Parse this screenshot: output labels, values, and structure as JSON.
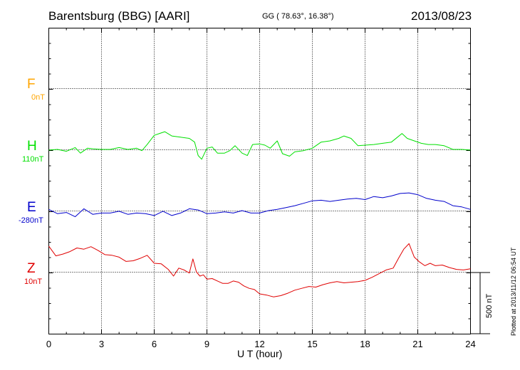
{
  "header": {
    "station": "Barentsburg (BBG)  [AARI]",
    "coords": "GG ( 78.63°,  16.38°)",
    "date": "2013/08/23"
  },
  "footer": {
    "plotted": "Plotted at 2013/11/12 06:54  UT"
  },
  "scale": {
    "label": "500 nT",
    "value_nT": 500
  },
  "components": [
    {
      "letter": "F",
      "base": "0nT",
      "color": "#ffa500"
    },
    {
      "letter": "H",
      "base": "110nT",
      "color": "#00e000"
    },
    {
      "letter": "E",
      "base": "-280nT",
      "color": "#0000cc"
    },
    {
      "letter": "Z",
      "base": "10nT",
      "color": "#e00000"
    }
  ],
  "chart_data": {
    "type": "line",
    "title": "Barentsburg (BBG)  [AARI]",
    "xlabel": "U T (hour)",
    "ylabel": "",
    "xlim": [
      0,
      24
    ],
    "xticks": [
      "0",
      "3",
      "6",
      "9",
      "12",
      "15",
      "18",
      "21",
      "24"
    ],
    "y_unit": "nT",
    "grid": true,
    "series": [
      {
        "name": "F",
        "color": "#ffa500",
        "x": [],
        "y": []
      },
      {
        "name": "H",
        "color": "#00e000",
        "x": [
          0,
          0.5,
          1,
          1.5,
          1.8,
          2.2,
          2.5,
          3,
          3.5,
          4,
          4.5,
          5,
          5.3,
          5.6,
          6,
          6.3,
          6.6,
          7,
          7.5,
          8,
          8.3,
          8.5,
          8.7,
          9,
          9.3,
          9.6,
          10,
          10.3,
          10.6,
          11,
          11.3,
          11.6,
          12,
          12.3,
          12.6,
          13,
          13.3,
          13.7,
          14,
          14.5,
          15,
          15.5,
          16,
          16.5,
          16.8,
          17.2,
          17.6,
          18,
          18.5,
          19,
          19.5,
          19.8,
          20.1,
          20.4,
          20.8,
          21.2,
          21.6,
          22,
          22.5,
          23,
          23.5,
          24
        ],
        "y": [
          105,
          110,
          95,
          125,
          80,
          120,
          115,
          110,
          110,
          125,
          110,
          120,
          100,
          150,
          225,
          240,
          255,
          220,
          210,
          200,
          170,
          60,
          30,
          120,
          130,
          80,
          80,
          100,
          140,
          80,
          60,
          150,
          155,
          145,
          120,
          180,
          75,
          55,
          90,
          100,
          120,
          170,
          180,
          200,
          220,
          200,
          140,
          145,
          150,
          160,
          170,
          205,
          240,
          200,
          180,
          160,
          150,
          150,
          140,
          110,
          110,
          105
        ]
      },
      {
        "name": "E",
        "color": "#0000cc",
        "x": [
          0,
          0.5,
          1,
          1.5,
          2,
          2.5,
          3,
          3.5,
          4,
          4.5,
          5,
          5.5,
          6,
          6.5,
          7,
          7.5,
          8,
          8.5,
          9,
          9.5,
          10,
          10.5,
          11,
          11.5,
          12,
          12.5,
          13,
          13.5,
          14,
          14.5,
          15,
          15.5,
          16,
          16.5,
          17,
          17.5,
          18,
          18.5,
          19,
          19.5,
          20,
          20.5,
          21,
          21.5,
          22,
          22.5,
          23,
          23.5,
          24
        ],
        "y": [
          -270,
          -305,
          -295,
          -330,
          -265,
          -310,
          -300,
          -300,
          -285,
          -310,
          -300,
          -305,
          -320,
          -285,
          -320,
          -300,
          -265,
          -275,
          -305,
          -300,
          -290,
          -300,
          -280,
          -300,
          -300,
          -280,
          -270,
          -255,
          -240,
          -220,
          -200,
          -195,
          -205,
          -195,
          -185,
          -180,
          -190,
          -165,
          -175,
          -160,
          -140,
          -135,
          -150,
          -180,
          -195,
          -205,
          -240,
          -250,
          -270
        ]
      },
      {
        "name": "Z",
        "color": "#e00000",
        "x": [
          0,
          0.4,
          0.8,
          1.2,
          1.6,
          2,
          2.4,
          2.8,
          3.2,
          3.6,
          4,
          4.4,
          4.8,
          5.2,
          5.6,
          6,
          6.4,
          6.8,
          7.1,
          7.4,
          7.7,
          8,
          8.2,
          8.4,
          8.6,
          8.8,
          9,
          9.3,
          9.6,
          9.9,
          10.2,
          10.5,
          10.8,
          11.1,
          11.4,
          11.7,
          12,
          12.4,
          12.8,
          13.2,
          13.6,
          14,
          14.4,
          14.8,
          15.2,
          15.6,
          16,
          16.4,
          16.8,
          17.2,
          17.6,
          18,
          18.4,
          18.8,
          19.2,
          19.6,
          19.9,
          20.2,
          20.5,
          20.8,
          21.1,
          21.4,
          21.7,
          22,
          22.4,
          22.8,
          23.2,
          23.6,
          24
        ],
        "y": [
          220,
          140,
          155,
          175,
          205,
          195,
          215,
          185,
          150,
          145,
          130,
          95,
          100,
          120,
          145,
          80,
          75,
          30,
          -25,
          40,
          25,
          0,
          115,
          10,
          -25,
          -15,
          -50,
          -45,
          -65,
          -85,
          -85,
          -65,
          -75,
          -105,
          -125,
          -135,
          -170,
          -180,
          -195,
          -185,
          -165,
          -140,
          -125,
          -110,
          -115,
          -95,
          -80,
          -70,
          -80,
          -75,
          -70,
          -60,
          -35,
          -5,
          25,
          40,
          120,
          195,
          240,
          130,
          90,
          60,
          80,
          60,
          65,
          45,
          30,
          25,
          35
        ]
      }
    ]
  }
}
